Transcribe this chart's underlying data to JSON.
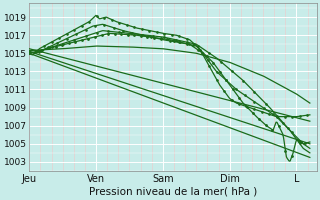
{
  "title": "Pression niveau de la mer( hPa )",
  "bg_color": "#c8ece9",
  "grid_major_color": "#ffffff",
  "grid_minor_color": "#f0c8c8",
  "line_color": "#1a6b1a",
  "ylim": [
    1002,
    1020.5
  ],
  "yticks": [
    1003,
    1005,
    1007,
    1009,
    1011,
    1013,
    1015,
    1017,
    1019
  ],
  "xtick_labels": [
    "Jeu",
    "Ven",
    "Sam",
    "Dim",
    "L"
  ],
  "xtick_pos": [
    0,
    1,
    2,
    3,
    4
  ],
  "x_max": 4.3,
  "figsize": [
    3.2,
    2.0
  ],
  "dpi": 100
}
